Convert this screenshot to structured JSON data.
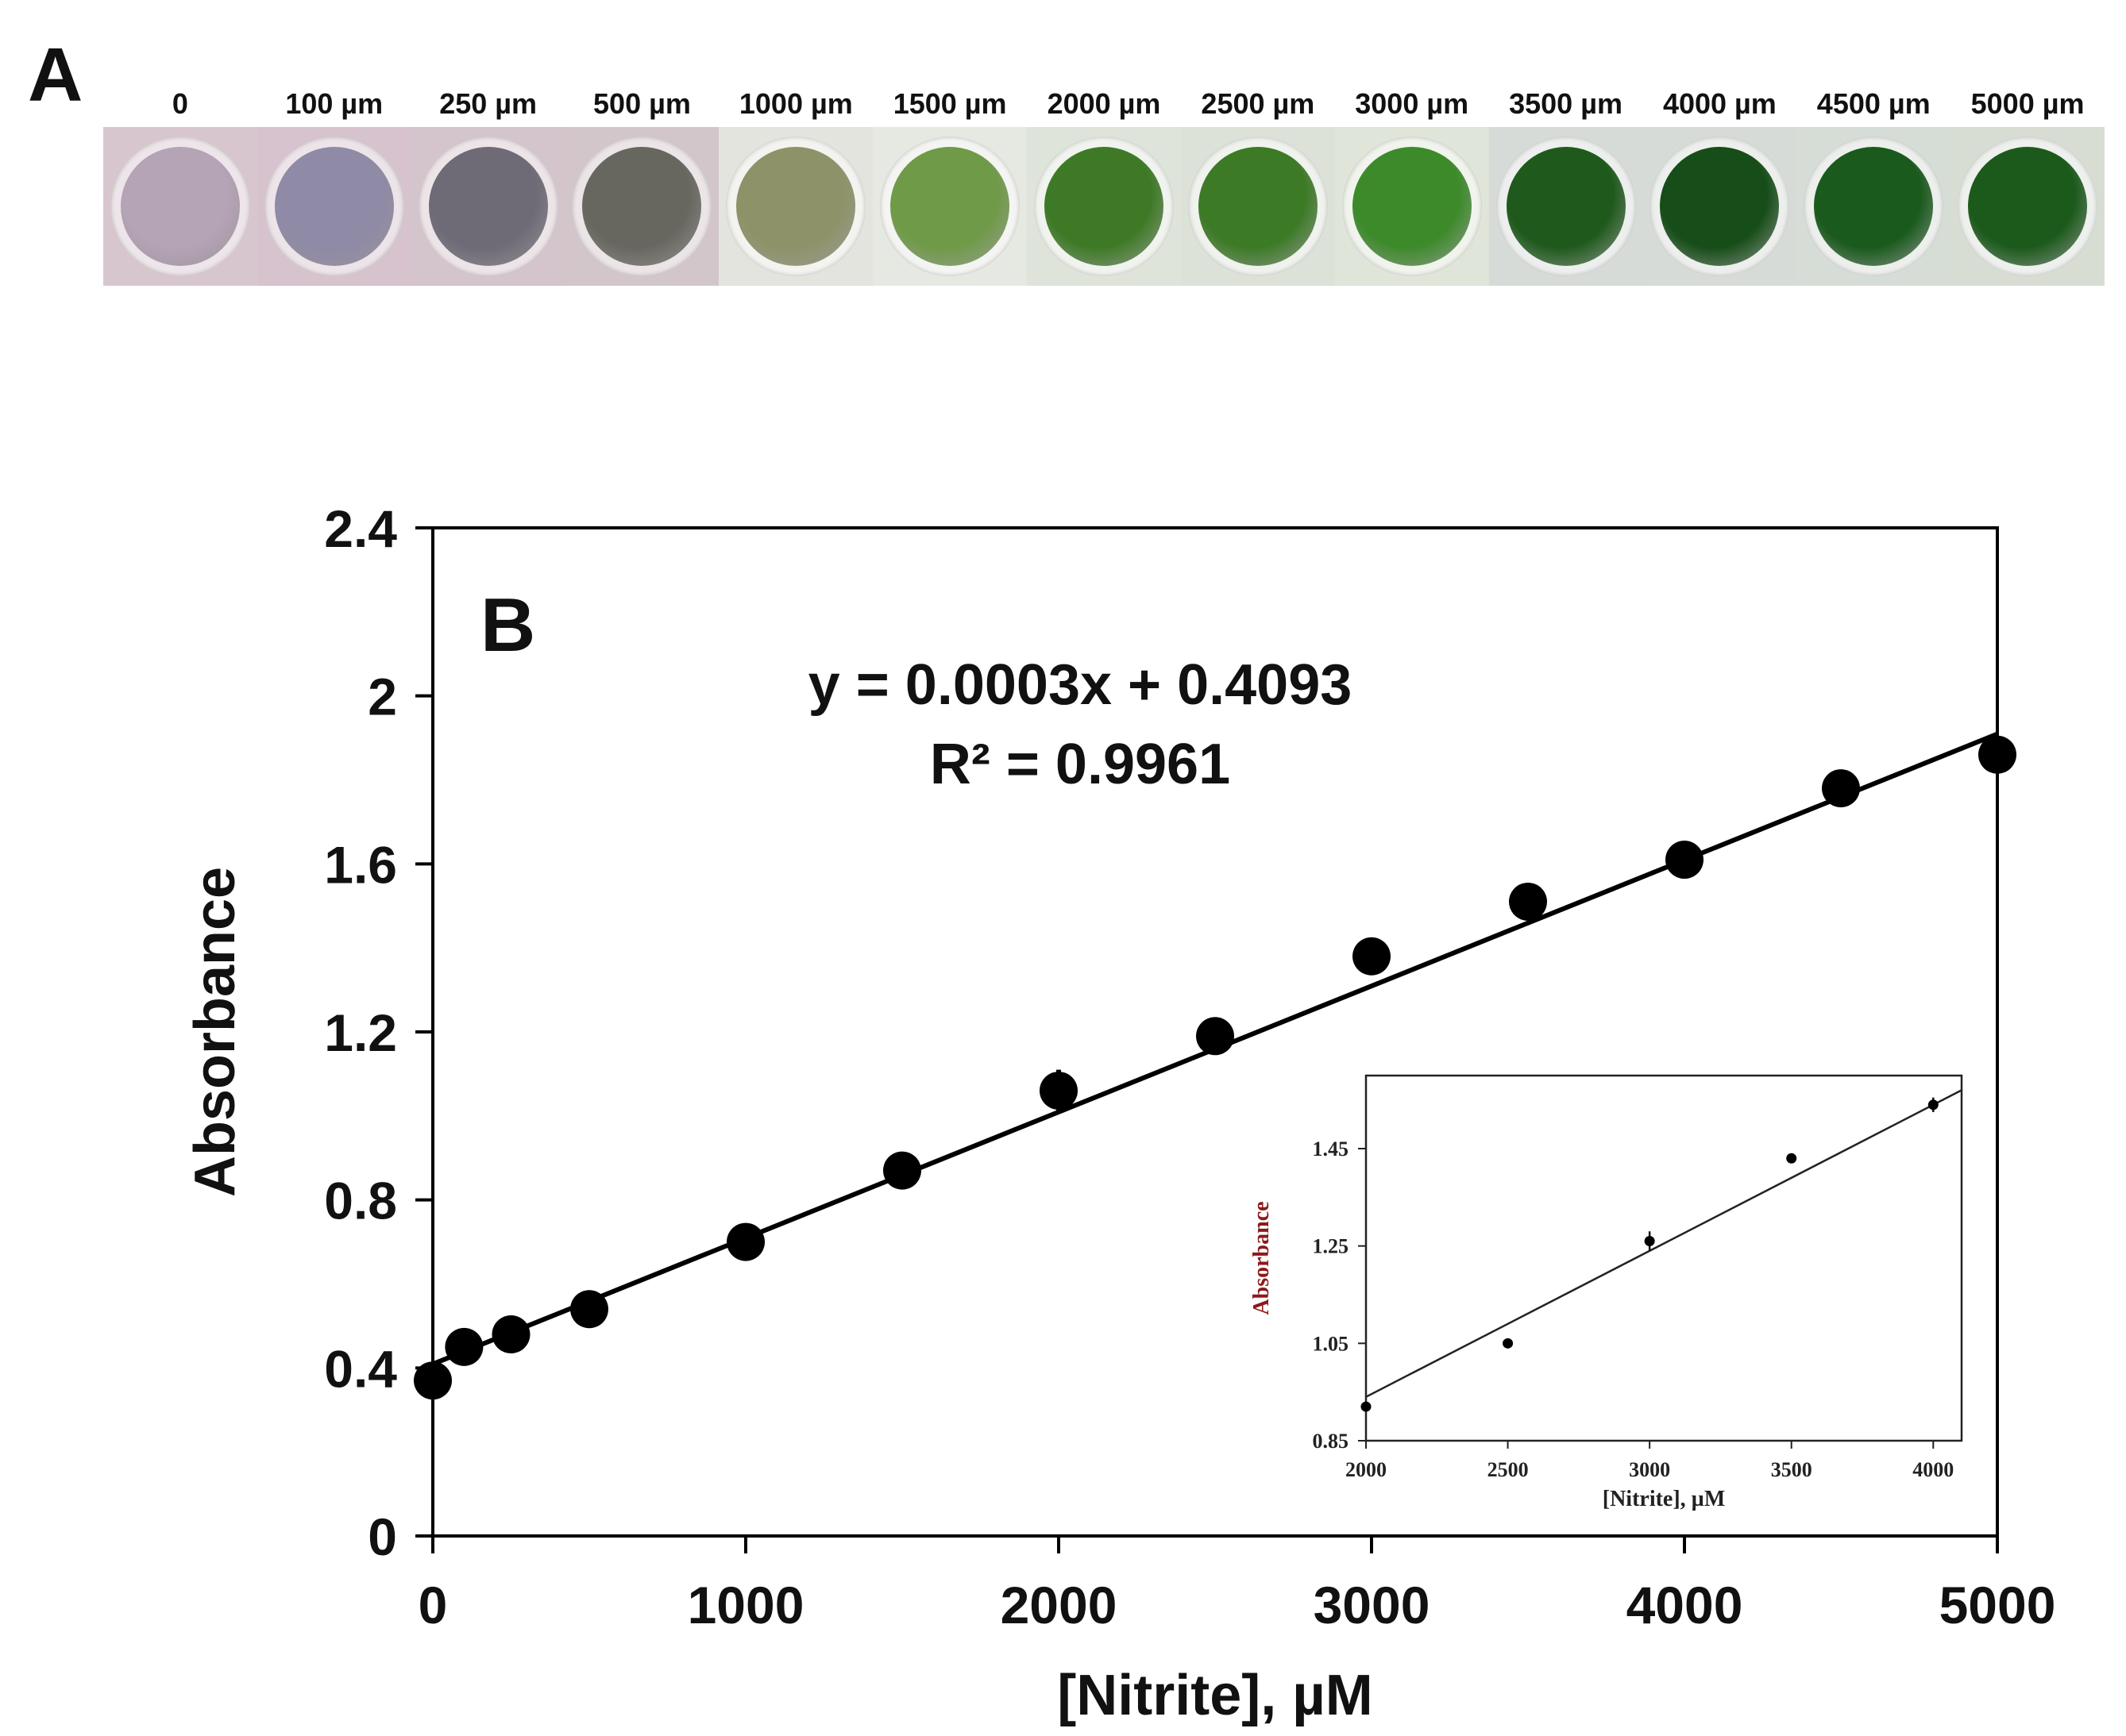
{
  "panel_a": {
    "letter": "A",
    "wells": [
      {
        "label": "0",
        "frame": "#d8c6cf",
        "liquid": "#b5a3b6"
      },
      {
        "label": "100 µm",
        "frame": "#d6c3cd",
        "liquid": "#8f8aa6"
      },
      {
        "label": "250 µm",
        "frame": "#d4c4cb",
        "liquid": "#6e6a76"
      },
      {
        "label": "500 µm",
        "frame": "#d2c6cb",
        "liquid": "#67675f"
      },
      {
        "label": "1000 µm",
        "frame": "#e4e4de",
        "liquid": "#8e9268"
      },
      {
        "label": "1500 µm",
        "frame": "#e6e8e2",
        "liquid": "#6f9a48"
      },
      {
        "label": "2000 µm",
        "frame": "#dfe4db",
        "liquid": "#3e7a26"
      },
      {
        "label": "2500 µm",
        "frame": "#dde2d8",
        "liquid": "#3c7a26"
      },
      {
        "label": "3000 µm",
        "frame": "#dfe5d8",
        "liquid": "#3d8a2b"
      },
      {
        "label": "3500 µm",
        "frame": "#d6dbd7",
        "liquid": "#1f5a1c"
      },
      {
        "label": "4000 µm",
        "frame": "#d7dbd7",
        "liquid": "#164d18"
      },
      {
        "label": "4500 µm",
        "frame": "#d6dcd6",
        "liquid": "#1a5a1d"
      },
      {
        "label": "5000 µm",
        "frame": "#d8ddd4",
        "liquid": "#1c5a1c"
      }
    ]
  },
  "panel_b": {
    "letter": "B",
    "equation": "y = 0.0003x + 0.4093",
    "r_squared": "R² = 0.9961"
  },
  "chart_data": [
    {
      "type": "scatter",
      "name": "main",
      "title": "",
      "xlabel": "[Nitrite], µM",
      "ylabel": "Absorbance",
      "xlim": [
        0,
        5000
      ],
      "ylim": [
        0,
        2.4
      ],
      "xticks": [
        "0",
        "1000",
        "2000",
        "3000",
        "4000",
        "5000"
      ],
      "xtick_values": [
        0,
        1000,
        2000,
        3000,
        4000,
        5000
      ],
      "yticks": [
        "0",
        "0.4",
        "0.8",
        "1.2",
        "1.6",
        "2",
        "2.4"
      ],
      "ytick_values": [
        0,
        0.4,
        0.8,
        1.2,
        1.6,
        2.0,
        2.4
      ],
      "x": [
        0,
        100,
        250,
        500,
        1000,
        1500,
        2000,
        2500,
        3000,
        3500,
        4000,
        4500,
        5000
      ],
      "y": [
        0.37,
        0.45,
        0.48,
        0.54,
        0.7,
        0.87,
        1.06,
        1.19,
        1.38,
        1.51,
        1.61,
        1.78,
        1.86
      ],
      "error": [
        0.02,
        0.02,
        0.02,
        0.02,
        0.02,
        0.02,
        0.05,
        0.02,
        0.02,
        0.02,
        0.02,
        0.04,
        0.02
      ],
      "fit": {
        "slope": 0.0003,
        "intercept": 0.4093,
        "x_range": [
          0,
          5000
        ]
      },
      "color": "#000000"
    },
    {
      "type": "scatter",
      "name": "inset",
      "title": "",
      "xlabel": "[Nitrite], µM",
      "ylabel": "Absorbance",
      "xlim": [
        2000,
        4100
      ],
      "ylim": [
        0.85,
        1.6
      ],
      "xticks": [
        "2000",
        "2500",
        "3000",
        "3500",
        "4000"
      ],
      "xtick_values": [
        2000,
        2500,
        3000,
        3500,
        4000
      ],
      "yticks": [
        "0.85",
        "1.05",
        "1.25",
        "1.45"
      ],
      "ytick_values": [
        0.85,
        1.05,
        1.25,
        1.45
      ],
      "x": [
        2000,
        2500,
        3000,
        3500,
        4000
      ],
      "y": [
        0.92,
        1.05,
        1.26,
        1.43,
        1.54
      ],
      "error": [
        0.0,
        0.0,
        0.02,
        0.0,
        0.015
      ],
      "fit": {
        "x_range": [
          2000,
          4100
        ],
        "y_range": [
          0.94,
          1.57
        ]
      },
      "color": "#000000",
      "ylabel_color": "#8b1a1a"
    }
  ]
}
